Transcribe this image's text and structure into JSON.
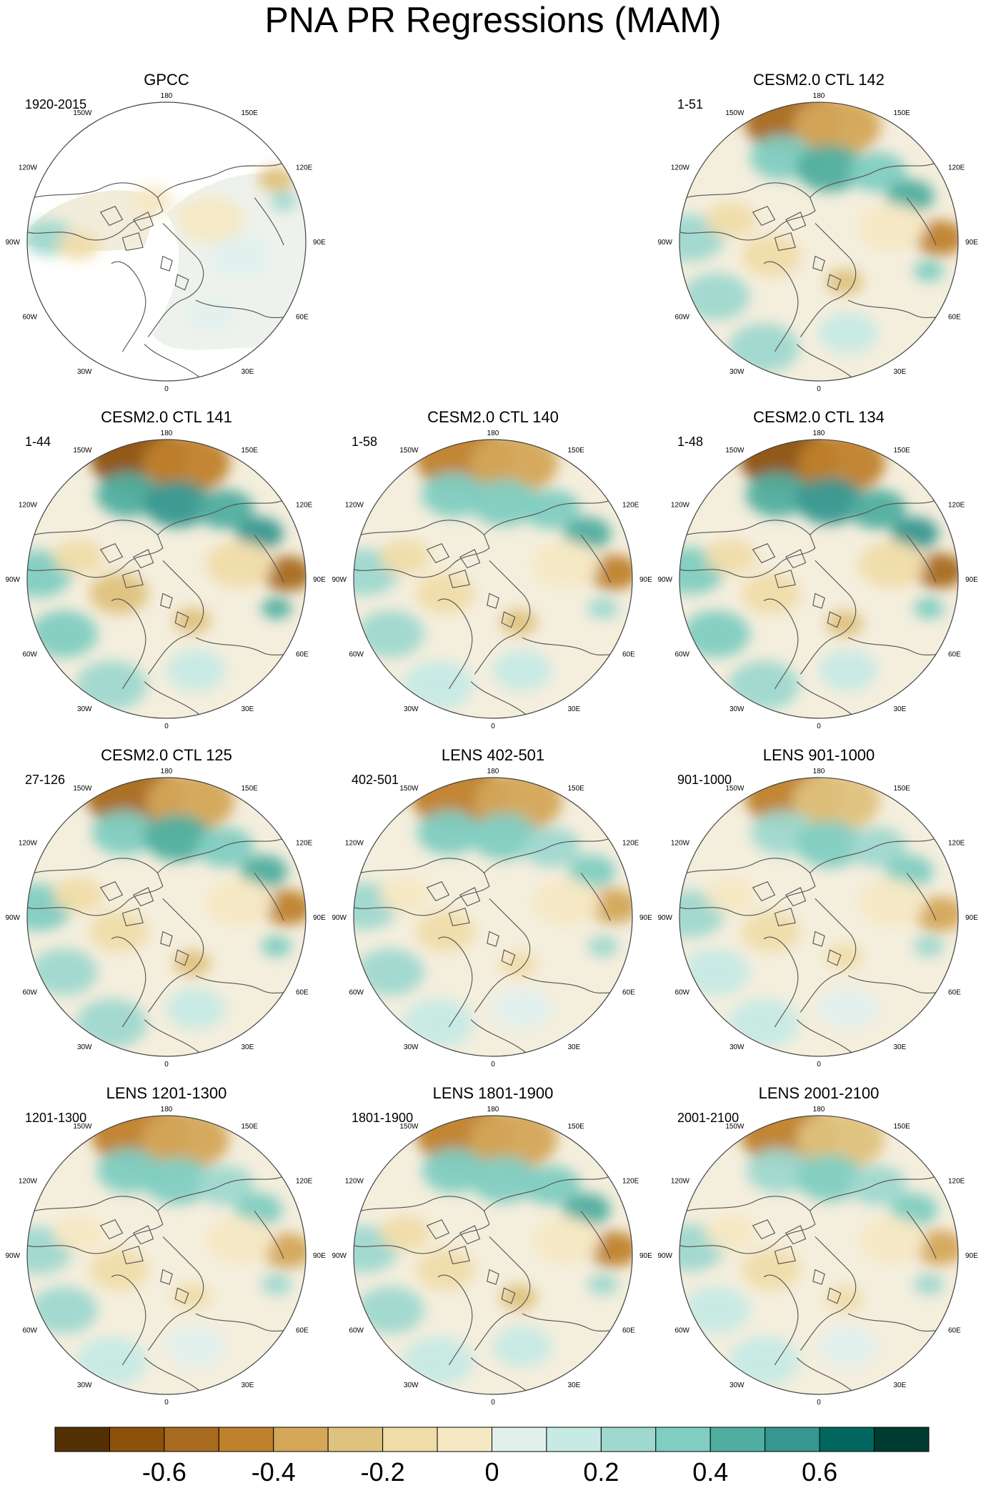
{
  "figure": {
    "title": "PNA PR Regressions (MAM)"
  },
  "chart_data": {
    "type": "heatmap",
    "projection": "north-polar-stereographic",
    "variable": "precipitation regression on PNA index",
    "season": "MAM",
    "longitude_labels": [
      "180",
      "150E",
      "120E",
      "90E",
      "60E",
      "30E",
      "0",
      "30W",
      "60W",
      "90W",
      "120W",
      "150W"
    ],
    "colorbar": {
      "tick_labels": [
        "-0.6",
        "-0.4",
        "-0.2",
        "0",
        "0.2",
        "0.4",
        "0.6"
      ],
      "ticks": [
        -0.6,
        -0.4,
        -0.2,
        0,
        0.2,
        0.4,
        0.6
      ],
      "range": [
        -0.8,
        0.8
      ],
      "colors": [
        "#543005",
        "#8c510a",
        "#a86a1f",
        "#bf812d",
        "#d4a759",
        "#dfc27d",
        "#f0dca9",
        "#f6e8c3",
        "#f2efe2",
        "#e2f0ee",
        "#c7eae5",
        "#9fd8cf",
        "#80cdc1",
        "#4fae9f",
        "#35978f",
        "#01665e",
        "#003c30"
      ]
    },
    "panels": [
      {
        "id": "gpcc",
        "title": "GPCC",
        "period": "1920-2015",
        "land_only": true
      },
      {
        "id": "ctl142",
        "title": "CESM2.0 CTL 142",
        "period": "1-51"
      },
      {
        "id": "ctl141",
        "title": "CESM2.0 CTL 141",
        "period": "1-44"
      },
      {
        "id": "ctl140",
        "title": "CESM2.0 CTL 140",
        "period": "1-58"
      },
      {
        "id": "ctl134",
        "title": "CESM2.0 CTL 134",
        "period": "1-48"
      },
      {
        "id": "ctl125",
        "title": "CESM2.0 CTL 125",
        "period": "27-126"
      },
      {
        "id": "lens402",
        "title": "LENS 402-501",
        "period": "402-501"
      },
      {
        "id": "lens901",
        "title": "LENS 901-1000",
        "period": "901-1000"
      },
      {
        "id": "lens1201",
        "title": "LENS 1201-1300",
        "period": "1201-1300"
      },
      {
        "id": "lens1801",
        "title": "LENS 1801-1900",
        "period": "1801-1900"
      },
      {
        "id": "lens2001",
        "title": "LENS 2001-2100",
        "period": "2001-2100"
      }
    ]
  }
}
